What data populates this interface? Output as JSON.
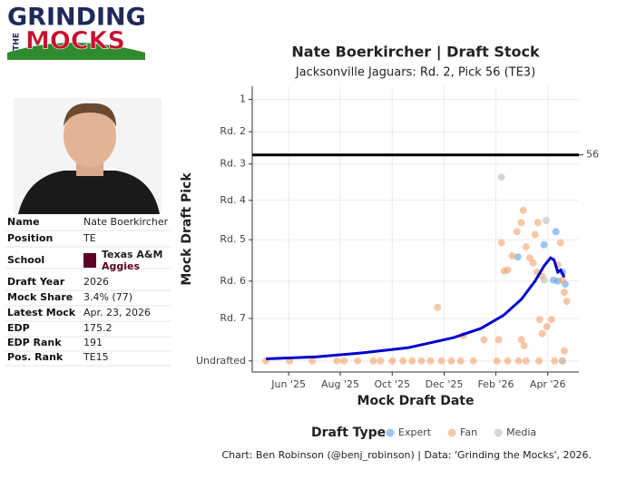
{
  "logo": {
    "line1": "GRINDING",
    "line2": "THE",
    "line3": "MOCKS"
  },
  "profile": {
    "rows": [
      {
        "label": "Name",
        "value": "Nate Boerkircher"
      },
      {
        "label": "Position",
        "value": "TE"
      },
      {
        "label": "School",
        "value": "Texas A&M",
        "sub": "Aggies"
      },
      {
        "label": "Draft Year",
        "value": "2026"
      },
      {
        "label": "Mock Share",
        "value": "3.4% (77)"
      },
      {
        "label": "Latest Mock",
        "value": "Apr. 23, 2026"
      },
      {
        "label": "EDP",
        "value": "175.2"
      },
      {
        "label": "EDP Rank",
        "value": "191"
      },
      {
        "label": "Pos. Rank",
        "value": "TE15"
      }
    ]
  },
  "chart_data": {
    "type": "scatter",
    "title": "Nate Boerkircher | Draft Stock",
    "subtitle": "Jacksonville Jaguars: Rd. 2, Pick 56 (TE3)",
    "x_label": "Mock Draft Date",
    "y_label": "Mock Draft Pick",
    "xlim": [
      2025.3,
      2026.35
    ],
    "ylim": [
      -12,
      271
    ],
    "y_reversed": true,
    "grid": true,
    "xticks": [
      {
        "value": 2025.417,
        "label": "Jun '25"
      },
      {
        "value": 2025.583,
        "label": "Aug '25"
      },
      {
        "value": 2025.75,
        "label": "Oct '25"
      },
      {
        "value": 2025.917,
        "label": "Dec '25"
      },
      {
        "value": 2026.083,
        "label": "Feb '26"
      },
      {
        "value": 2026.25,
        "label": "Apr '26"
      }
    ],
    "yticks": [
      1,
      {
        "value": 33,
        "label": "Rd. 2"
      },
      {
        "value": 65,
        "label": "Rd. 3"
      },
      {
        "value": 101,
        "label": "Rd. 4"
      },
      {
        "value": 140,
        "label": "Rd. 5"
      },
      {
        "value": 181,
        "label": "Rd. 6"
      },
      {
        "value": 218,
        "label": "Rd. 7"
      },
      {
        "value": 260,
        "label": "Undrafted"
      }
    ],
    "reference_line": 56,
    "legend_title": "Draft Type",
    "legend_position": "bottom",
    "series": [
      {
        "name": "Expert",
        "color": "#5aa0e8",
        "x": [
          2026.154,
          2026.238,
          2026.276,
          2026.282,
          2026.297,
          2026.306,
          2026.268
        ],
        "values": [
          157,
          145,
          132,
          181,
          172,
          184,
          180
        ]
      },
      {
        "name": "Fan",
        "color": "#f4a26b",
        "x": [
          2025.344,
          2025.42,
          2025.493,
          2025.572,
          2025.595,
          2025.639,
          2025.689,
          2025.712,
          2025.75,
          2025.785,
          2025.814,
          2025.844,
          2025.873,
          2025.908,
          2025.94,
          2025.97,
          2026.011,
          2026.087,
          2026.121,
          2026.156,
          2026.18,
          2026.222,
          2026.272,
          2026.297,
          2025.978,
          2026.045,
          2026.092,
          2025.896,
          2026.101,
          2026.121,
          2026.136,
          2026.151,
          2026.165,
          2026.171,
          2026.18,
          2026.192,
          2026.203,
          2026.215,
          2026.224,
          2026.232,
          2026.247,
          2026.262,
          2026.165,
          2026.174,
          2026.282,
          2026.291,
          2026.297,
          2026.303,
          2026.311,
          2026.303,
          2026.232,
          2026.209,
          2026.218,
          2026.11
        ],
        "values": [
          260,
          260,
          260,
          260,
          260,
          260,
          260,
          260,
          260,
          260,
          260,
          260,
          260,
          260,
          260,
          260,
          260,
          260,
          260,
          260,
          260,
          260,
          260,
          260,
          235,
          239,
          239,
          207,
          143,
          170,
          156,
          132,
          123,
          111,
          147,
          158,
          163,
          172,
          219,
          233,
          226,
          219,
          239,
          245,
          165,
          143,
          180,
          192,
          201,
          250,
          176,
          135,
          123,
          171
        ]
      },
      {
        "name": "Media",
        "color": "#bdbdbd",
        "x": [
          2026.101,
          2026.244,
          2026.238,
          2026.297
        ],
        "values": [
          78,
          121,
          180,
          260
        ]
      }
    ],
    "trend": {
      "color": "#0000cc",
      "x": [
        2025.344,
        2025.507,
        2025.654,
        2025.8,
        2025.946,
        2026.034,
        2026.107,
        2026.165,
        2026.209,
        2026.238,
        2026.259,
        2026.27,
        2026.282,
        2026.291,
        2026.303
      ],
      "values": [
        258,
        256,
        252,
        247,
        237,
        228,
        215,
        199,
        181,
        166,
        158,
        160,
        172,
        170,
        177
      ]
    },
    "caption": "Chart: Ben Robinson (@benj_robinson) | Data: 'Grinding the Mocks', 2026."
  }
}
